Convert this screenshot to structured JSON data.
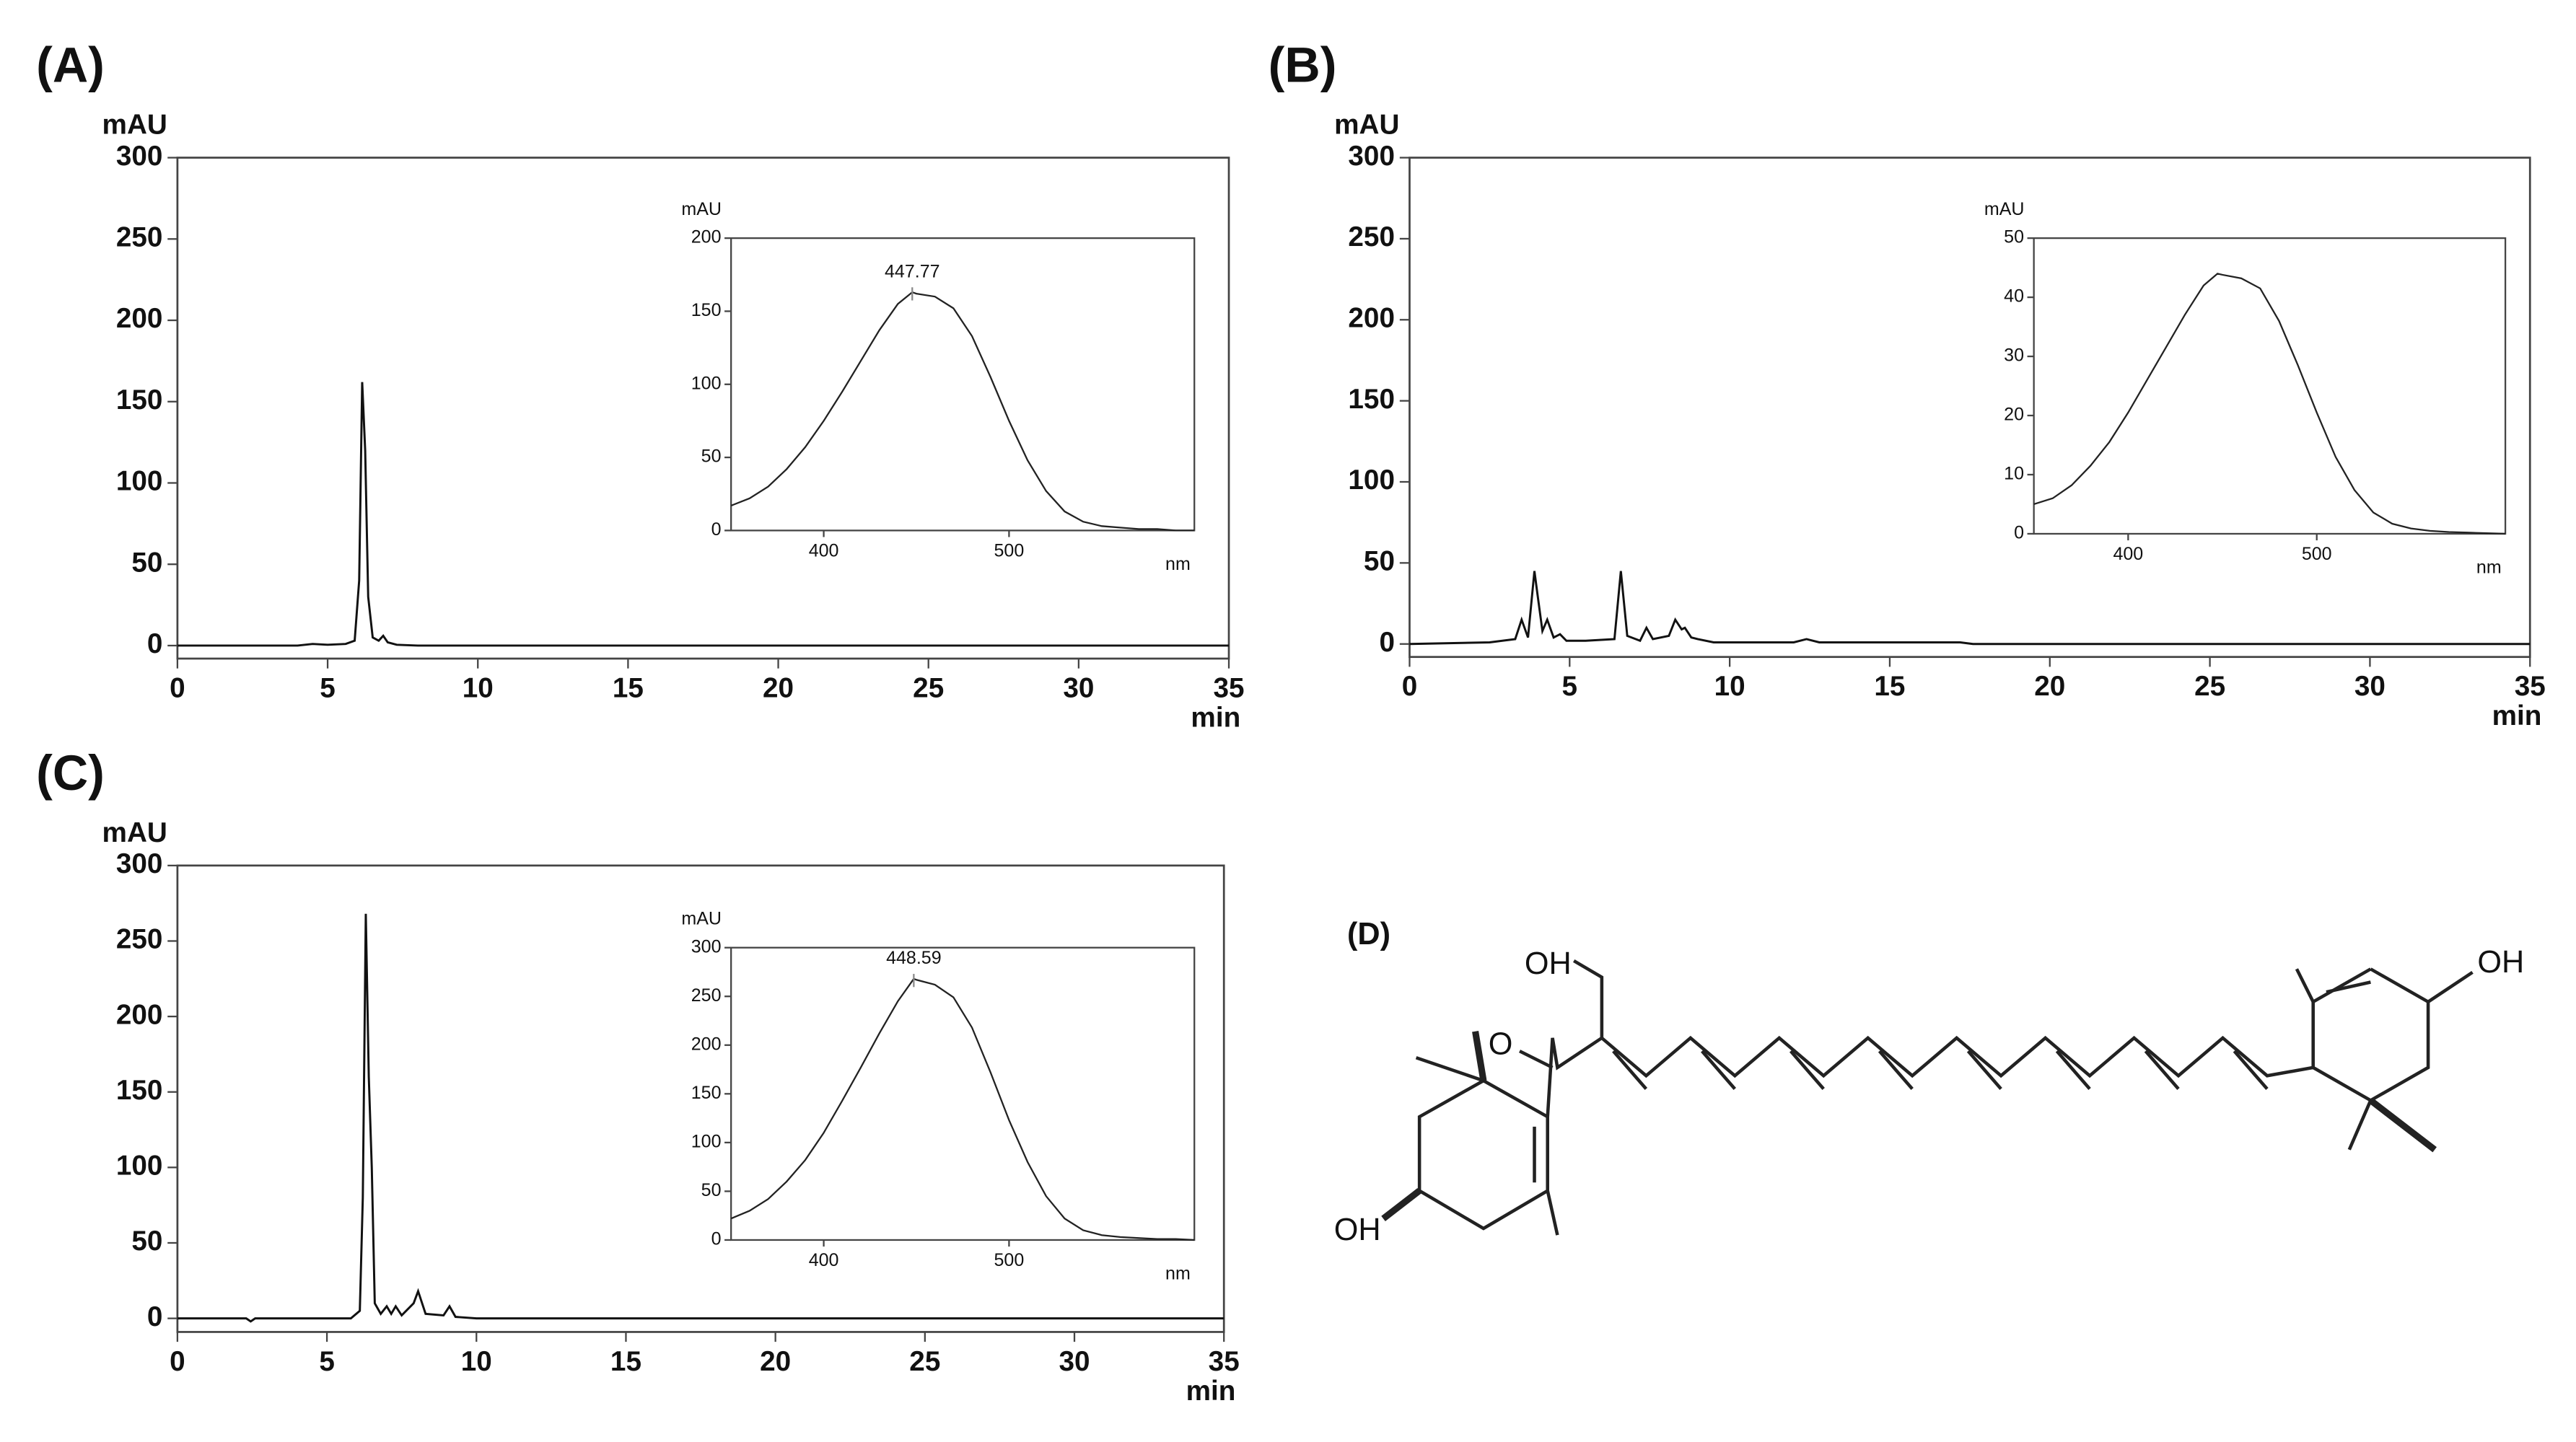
{
  "chart_data": [
    {
      "type": "line",
      "title": "(A)",
      "ylabel": "mAU",
      "xlabel": "min",
      "xlim": [
        0,
        35
      ],
      "ylim": [
        -8,
        300
      ],
      "xticks": [
        0,
        5,
        10,
        15,
        20,
        25,
        30,
        35
      ],
      "yticks": [
        0,
        50,
        100,
        150,
        200,
        250,
        300
      ],
      "color": "#111111",
      "x": [
        0,
        4,
        4.5,
        5,
        5.6,
        5.9,
        6.05,
        6.15,
        6.25,
        6.35,
        6.5,
        6.7,
        6.85,
        7.0,
        7.3,
        8,
        35
      ],
      "values": [
        0,
        0,
        1,
        0.5,
        1,
        3,
        40,
        162,
        120,
        30,
        5,
        3,
        6,
        2,
        0.5,
        0,
        0
      ]
    },
    {
      "type": "line",
      "ylabel": "mAU",
      "xlabel": "nm",
      "xlim": [
        350,
        600
      ],
      "ylim": [
        0,
        200
      ],
      "xticks": [
        400,
        500
      ],
      "yticks": [
        0,
        50,
        100,
        150,
        200
      ],
      "color": "#222222",
      "x": [
        350,
        360,
        370,
        380,
        390,
        400,
        410,
        420,
        430,
        440,
        447.77,
        450,
        460,
        470,
        480,
        490,
        500,
        510,
        520,
        530,
        540,
        550,
        560,
        570,
        580,
        590,
        600
      ],
      "values": [
        17,
        22,
        30,
        42,
        57,
        75,
        95,
        116,
        137,
        155,
        163,
        162,
        160,
        152,
        133,
        105,
        75,
        48,
        27,
        13,
        6,
        3,
        2,
        1,
        1,
        0,
        0
      ],
      "peak": {
        "x": 447.77,
        "y": 163
      }
    },
    {
      "type": "line",
      "title": "(B)",
      "ylabel": "mAU",
      "xlabel": "min",
      "xlim": [
        0,
        35
      ],
      "ylim": [
        -8,
        300
      ],
      "xticks": [
        0,
        5,
        10,
        15,
        20,
        25,
        30,
        35
      ],
      "yticks": [
        0,
        50,
        100,
        150,
        200,
        250,
        300
      ],
      "color": "#111111",
      "x": [
        0,
        2.5,
        3.3,
        3.5,
        3.7,
        3.9,
        4.0,
        4.15,
        4.3,
        4.5,
        4.7,
        4.9,
        5.5,
        6.4,
        6.6,
        6.8,
        7.2,
        7.4,
        7.6,
        8.1,
        8.3,
        8.5,
        8.6,
        8.8,
        9.0,
        9.5,
        12.0,
        12.4,
        12.8,
        15,
        16.2,
        17.2,
        17.6,
        35
      ],
      "values": [
        0,
        1,
        3,
        15,
        4,
        45,
        30,
        8,
        15,
        4,
        6,
        2,
        2,
        3,
        45,
        5,
        2,
        10,
        3,
        5,
        15,
        9,
        10,
        4,
        3,
        1,
        1,
        3,
        1,
        1,
        1,
        1,
        0,
        0
      ]
    },
    {
      "type": "line",
      "ylabel": "mAU",
      "xlabel": "nm",
      "xlim": [
        350,
        600
      ],
      "ylim": [
        0,
        50
      ],
      "xticks": [
        400,
        500
      ],
      "yticks": [
        0,
        10,
        20,
        30,
        40,
        50
      ],
      "color": "#222222",
      "x": [
        350,
        360,
        370,
        380,
        390,
        400,
        410,
        420,
        430,
        440,
        447.38,
        450,
        460,
        470,
        480,
        490,
        500,
        510,
        520,
        530,
        540,
        550,
        560,
        570,
        580,
        590,
        600
      ],
      "values": [
        5,
        6,
        8.2,
        11.5,
        15.5,
        20.5,
        26,
        31.5,
        37,
        42,
        44,
        43.8,
        43.2,
        41.5,
        36,
        28.5,
        20.5,
        13,
        7.4,
        3.6,
        1.7,
        0.9,
        0.5,
        0.3,
        0.2,
        0.1,
        0
      ]
    },
    {
      "type": "line",
      "title": "(C)",
      "ylabel": "mAU",
      "xlabel": "min",
      "xlim": [
        0,
        35
      ],
      "ylim": [
        -9,
        300
      ],
      "xticks": [
        0,
        5,
        10,
        15,
        20,
        25,
        30,
        35
      ],
      "yticks": [
        0,
        50,
        100,
        150,
        200,
        250,
        300
      ],
      "color": "#111111",
      "x": [
        0,
        2.3,
        2.45,
        2.6,
        5.8,
        6.1,
        6.2,
        6.3,
        6.4,
        6.5,
        6.6,
        6.8,
        7.0,
        7.15,
        7.3,
        7.5,
        7.9,
        8.05,
        8.3,
        8.9,
        9.1,
        9.3,
        10,
        35
      ],
      "values": [
        0,
        0,
        -2,
        0,
        0,
        5,
        80,
        268,
        160,
        100,
        10,
        3,
        8,
        3,
        8,
        2,
        10,
        18,
        3,
        2,
        8,
        1,
        0,
        0
      ]
    },
    {
      "type": "line",
      "ylabel": "mAU",
      "xlabel": "nm",
      "xlim": [
        350,
        600
      ],
      "ylim": [
        0,
        300
      ],
      "xticks": [
        400,
        500
      ],
      "yticks": [
        0,
        50,
        100,
        150,
        200,
        250,
        300
      ],
      "color": "#222222",
      "x": [
        350,
        360,
        370,
        380,
        390,
        400,
        410,
        420,
        430,
        440,
        448.59,
        450,
        460,
        470,
        480,
        490,
        500,
        510,
        520,
        530,
        540,
        550,
        560,
        570,
        580,
        590,
        600
      ],
      "values": [
        22,
        30,
        42,
        60,
        82,
        110,
        143,
        177,
        212,
        245,
        268,
        267,
        262,
        249,
        218,
        172,
        123,
        80,
        45,
        22,
        10,
        5,
        3,
        2,
        1,
        1,
        0
      ],
      "peak": {
        "x": 448.59,
        "y": 268
      }
    }
  ],
  "structure": {
    "label": "(D)",
    "atoms": [
      "OH",
      "O",
      "OH",
      "OH"
    ]
  }
}
